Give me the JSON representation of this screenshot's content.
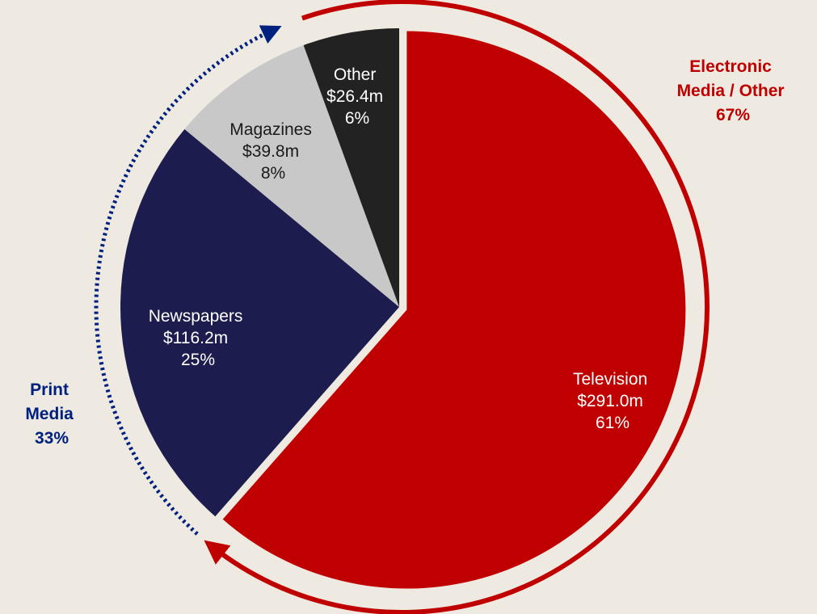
{
  "chart_data": {
    "type": "pie",
    "slices": [
      {
        "label": "Television",
        "value_label": "$291.0m",
        "value": 291.0,
        "percent_label": "61%",
        "color": "#C00000",
        "text_color": "#FFFFFF"
      },
      {
        "label": "Newspapers",
        "value_label": "$116.2m",
        "value": 116.2,
        "percent_label": "25%",
        "color": "#1C1C4E",
        "text_color": "#FFFFFF"
      },
      {
        "label": "Magazines",
        "value_label": "$39.8m",
        "value": 39.8,
        "percent_label": "8%",
        "color": "#C8C8C8",
        "text_color": "#1A1A1A"
      },
      {
        "label": "Other",
        "value_label": "$26.4m",
        "value": 26.4,
        "percent_label": "6%",
        "color": "#222222",
        "text_color": "#FFFFFF"
      }
    ],
    "groups": [
      {
        "line1": "Electronic",
        "line2": "Media / Other",
        "line3": "67%",
        "color": "#C00000",
        "style": "solid-arc"
      },
      {
        "line1": "Print",
        "line2": "Media",
        "line3": "33%",
        "color": "#00207F",
        "style": "dotted-arc"
      }
    ],
    "background": "#EEEAE1"
  }
}
